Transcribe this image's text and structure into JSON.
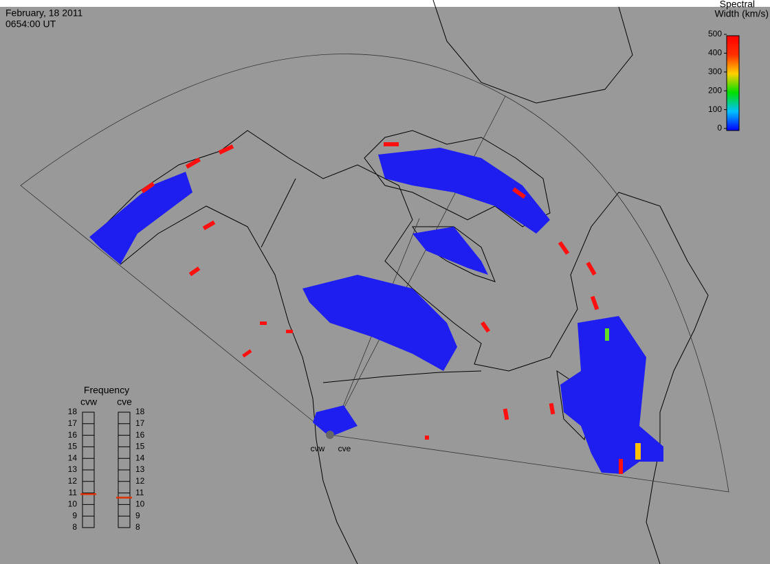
{
  "header": {
    "date": "February, 18 2011",
    "time": "0654:00 UT"
  },
  "colorbar": {
    "title_lines": [
      "Spectral",
      "Width (km/s)"
    ],
    "range": [
      0,
      500
    ],
    "ticks": [
      0,
      100,
      200,
      300,
      400,
      500
    ]
  },
  "frequency": {
    "title": "Frequency",
    "range": [
      8,
      18
    ],
    "ticks": [
      8,
      9,
      10,
      11,
      12,
      13,
      14,
      15,
      16,
      17,
      18
    ],
    "radars": [
      {
        "name": "cvw",
        "value": 10.9
      },
      {
        "name": "cve",
        "value": 10.6
      }
    ]
  },
  "stations": [
    "cvw",
    "cve"
  ]
}
